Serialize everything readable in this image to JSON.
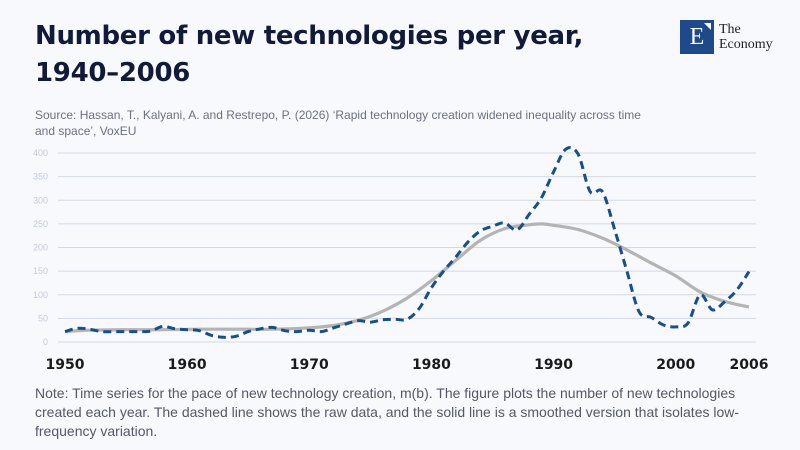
{
  "header": {
    "title_line1": "Number of new technologies per year,",
    "title_line2": "1940–2006",
    "source_line1": "Source: Hassan, T., Kalyani, A. and Restrepo, P. (2026) ‘Rapid technology creation widened inequality across time",
    "source_line2": "and space’, VoxEU"
  },
  "logo": {
    "letter": "E",
    "line1": "The",
    "line2": "Economy",
    "color": "#1e4a8c"
  },
  "note": "Note: Time series for the pace of new technology creation, m(b). The figure plots the number of new technologies created each year. The dashed line shows the raw data, and the solid line is a smoothed version that isolates low-frequency variation.",
  "chart_data": {
    "type": "line",
    "title": "Number of new technologies per year, 1940–2006",
    "xlabel": "",
    "ylabel": "",
    "xlim": [
      1950,
      2006
    ],
    "ylim": [
      0,
      400
    ],
    "grid": true,
    "x_ticks": [
      "1950",
      "1960",
      "1970",
      "1980",
      "1990",
      "2000",
      "2006"
    ],
    "y_ticks": [
      "0",
      "50",
      "100",
      "150",
      "200",
      "250",
      "300",
      "350",
      "400"
    ],
    "series": [
      {
        "name": "Raw data",
        "style": "dashed",
        "color": "#174e8c",
        "x": [
          1950,
          1951,
          1952,
          1953,
          1954,
          1955,
          1956,
          1957,
          1958,
          1959,
          1960,
          1961,
          1962,
          1963,
          1964,
          1965,
          1966,
          1967,
          1968,
          1969,
          1970,
          1971,
          1972,
          1973,
          1974,
          1975,
          1976,
          1977,
          1978,
          1979,
          1980,
          1981,
          1982,
          1983,
          1984,
          1985,
          1986,
          1987,
          1988,
          1989,
          1990,
          1991,
          1992,
          1993,
          1994,
          1995,
          1996,
          1997,
          1998,
          1999,
          2000,
          2001,
          2002,
          2003,
          2004,
          2005,
          2006
        ],
        "values": [
          22,
          29,
          27,
          22,
          22,
          22,
          22,
          23,
          33,
          28,
          26,
          24,
          14,
          10,
          12,
          22,
          28,
          31,
          24,
          22,
          25,
          22,
          30,
          38,
          45,
          42,
          47,
          48,
          48,
          71,
          115,
          150,
          180,
          212,
          235,
          245,
          252,
          237,
          270,
          305,
          360,
          408,
          398,
          318,
          318,
          238,
          150,
          64,
          52,
          36,
          32,
          40,
          100,
          68,
          85,
          110,
          149
        ]
      },
      {
        "name": "Smoothed",
        "style": "solid",
        "color": "#b4b4b4",
        "x": [
          1950,
          1952,
          1955,
          1958,
          1961,
          1964,
          1967,
          1970,
          1972,
          1974,
          1976,
          1978,
          1980,
          1982,
          1984,
          1986,
          1988,
          1989,
          1990,
          1992,
          1994,
          1996,
          1998,
          2000,
          2002,
          2004,
          2006
        ],
        "values": [
          22,
          25,
          26,
          26,
          27,
          27,
          27,
          30,
          35,
          46,
          65,
          93,
          130,
          173,
          215,
          240,
          248,
          250,
          247,
          238,
          220,
          195,
          167,
          140,
          106,
          86,
          74
        ]
      }
    ]
  }
}
